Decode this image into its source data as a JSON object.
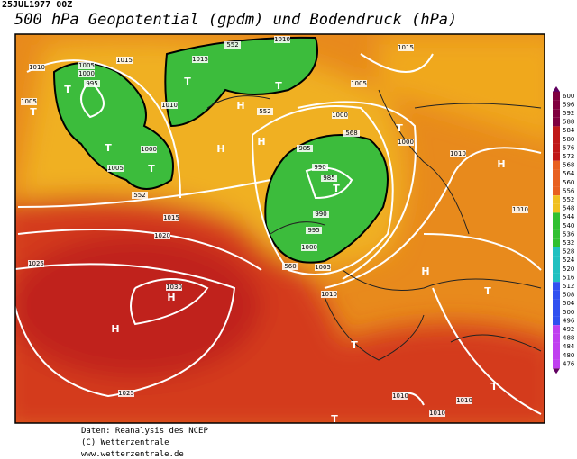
{
  "header": {
    "date": "25JUL1977 00Z",
    "title": "500 hPa Geopotential (gpdm) und Bodendruck (hPa)"
  },
  "legend": {
    "labels": [
      "600",
      "596",
      "592",
      "588",
      "584",
      "580",
      "576",
      "572",
      "568",
      "564",
      "560",
      "556",
      "552",
      "548",
      "544",
      "540",
      "536",
      "532",
      "528",
      "524",
      "520",
      "516",
      "512",
      "508",
      "504",
      "500",
      "496",
      "492",
      "488",
      "484",
      "480",
      "476"
    ]
  },
  "map": {
    "labels": [
      "1010",
      "552",
      "1015",
      "1010",
      "1005",
      "1000",
      "995",
      "T",
      "1015",
      "1015",
      "T",
      "1005",
      "1005",
      "T",
      "1010",
      "T",
      "552",
      "H",
      "H",
      "H",
      "1000",
      "568",
      "T",
      "1000",
      "T",
      "1000",
      "1005",
      "T",
      "985",
      "990",
      "985",
      "T",
      "990",
      "995",
      "1000",
      "1005",
      "1010",
      "H",
      "1010",
      "1015",
      "1020",
      "1025",
      "1030",
      "H",
      "H",
      "H",
      "T",
      "1010",
      "T",
      "T",
      "1010",
      "1010",
      "1010",
      "1025",
      "T",
      "552",
      "560"
    ]
  },
  "footer": {
    "lines": [
      "Daten: Reanalysis des NCEP",
      "(C) Wetterzentrale",
      "www.wetterzentrale.de"
    ]
  }
}
